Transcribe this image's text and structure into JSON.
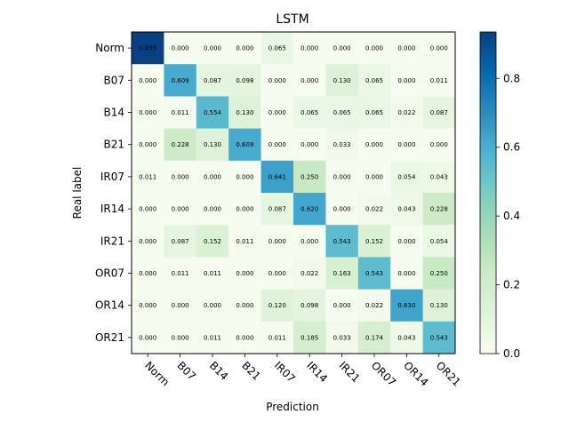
{
  "chart_data": {
    "type": "heatmap",
    "title": "LSTM",
    "xlabel": "Prediction",
    "ylabel": "Real label",
    "x_categories": [
      "Norm",
      "B07",
      "B14",
      "B21",
      "IR07",
      "IR14",
      "IR21",
      "OR07",
      "OR14",
      "OR21"
    ],
    "y_categories": [
      "Norm",
      "B07",
      "B14",
      "B21",
      "IR07",
      "IR14",
      "IR21",
      "OR07",
      "OR14",
      "OR21"
    ],
    "values": [
      [
        0.935,
        0.0,
        0.0,
        0.0,
        0.065,
        0.0,
        0.0,
        0.0,
        0.0,
        0.0
      ],
      [
        0.0,
        0.609,
        0.087,
        0.098,
        0.0,
        0.0,
        0.13,
        0.065,
        0.0,
        0.011
      ],
      [
        0.0,
        0.011,
        0.554,
        0.13,
        0.0,
        0.065,
        0.065,
        0.065,
        0.022,
        0.087
      ],
      [
        0.0,
        0.228,
        0.13,
        0.609,
        0.0,
        0.0,
        0.033,
        0.0,
        0.0,
        0.0
      ],
      [
        0.011,
        0.0,
        0.0,
        0.0,
        0.641,
        0.25,
        0.0,
        0.0,
        0.054,
        0.043
      ],
      [
        0.0,
        0.0,
        0.0,
        0.0,
        0.087,
        0.62,
        0.0,
        0.022,
        0.043,
        0.228
      ],
      [
        0.0,
        0.087,
        0.152,
        0.011,
        0.0,
        0.0,
        0.543,
        0.152,
        0.0,
        0.054
      ],
      [
        0.0,
        0.011,
        0.011,
        0.0,
        0.0,
        0.022,
        0.163,
        0.543,
        0.0,
        0.25
      ],
      [
        0.0,
        0.0,
        0.0,
        0.0,
        0.12,
        0.098,
        0.0,
        0.022,
        0.63,
        0.13
      ],
      [
        0.0,
        0.0,
        0.011,
        0.0,
        0.011,
        0.185,
        0.033,
        0.174,
        0.043,
        0.543
      ]
    ],
    "value_format": "0.000",
    "colormap": "GnBu",
    "colorbar": {
      "range": [
        0.0,
        0.935
      ],
      "ticks": [
        0.0,
        0.2,
        0.4,
        0.6,
        0.8
      ],
      "tick_labels": [
        "0.0",
        "0.2",
        "0.4",
        "0.6",
        "0.8"
      ]
    },
    "x_tick_rotation": "-45",
    "grid": false,
    "legend": "colorbar-right"
  },
  "colors": {
    "low": "#f7fcf0",
    "high": "#084081",
    "text": "#000000"
  }
}
